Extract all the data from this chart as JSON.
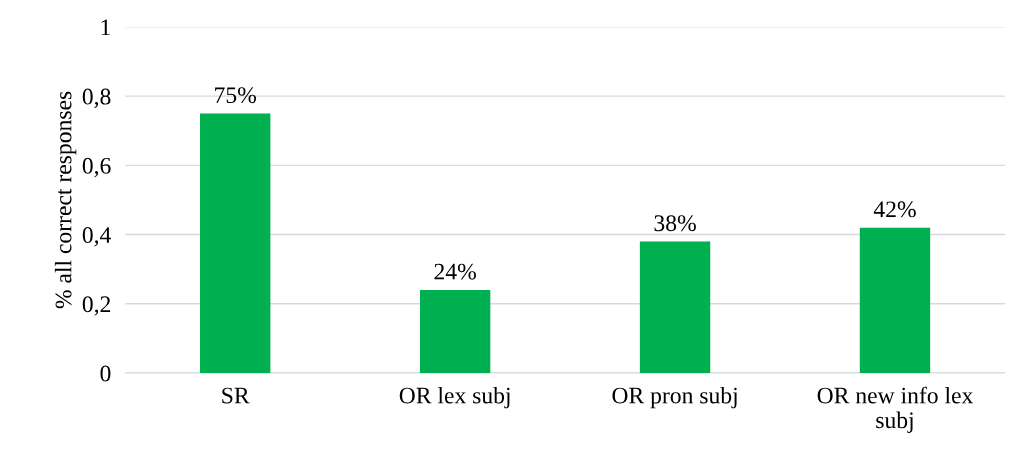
{
  "chart_data": {
    "type": "bar",
    "ylabel": "% all correct responses",
    "categories": [
      "SR",
      "OR lex subj",
      "OR pron subj",
      "OR new info lex subj"
    ],
    "values": [
      0.75,
      0.24,
      0.38,
      0.42
    ],
    "value_labels": [
      "75%",
      "24%",
      "38%",
      "42%"
    ],
    "color": "#00b050",
    "ylim": [
      0,
      1
    ],
    "yticks": [
      0,
      {
        "value": 0.2,
        "label": "0,2"
      },
      {
        "value": 0.4,
        "label": "0,4"
      },
      {
        "value": 0.6,
        "label": "0,6"
      },
      {
        "value": 0.8,
        "label": "0,8"
      },
      1
    ],
    "grid": "y"
  }
}
